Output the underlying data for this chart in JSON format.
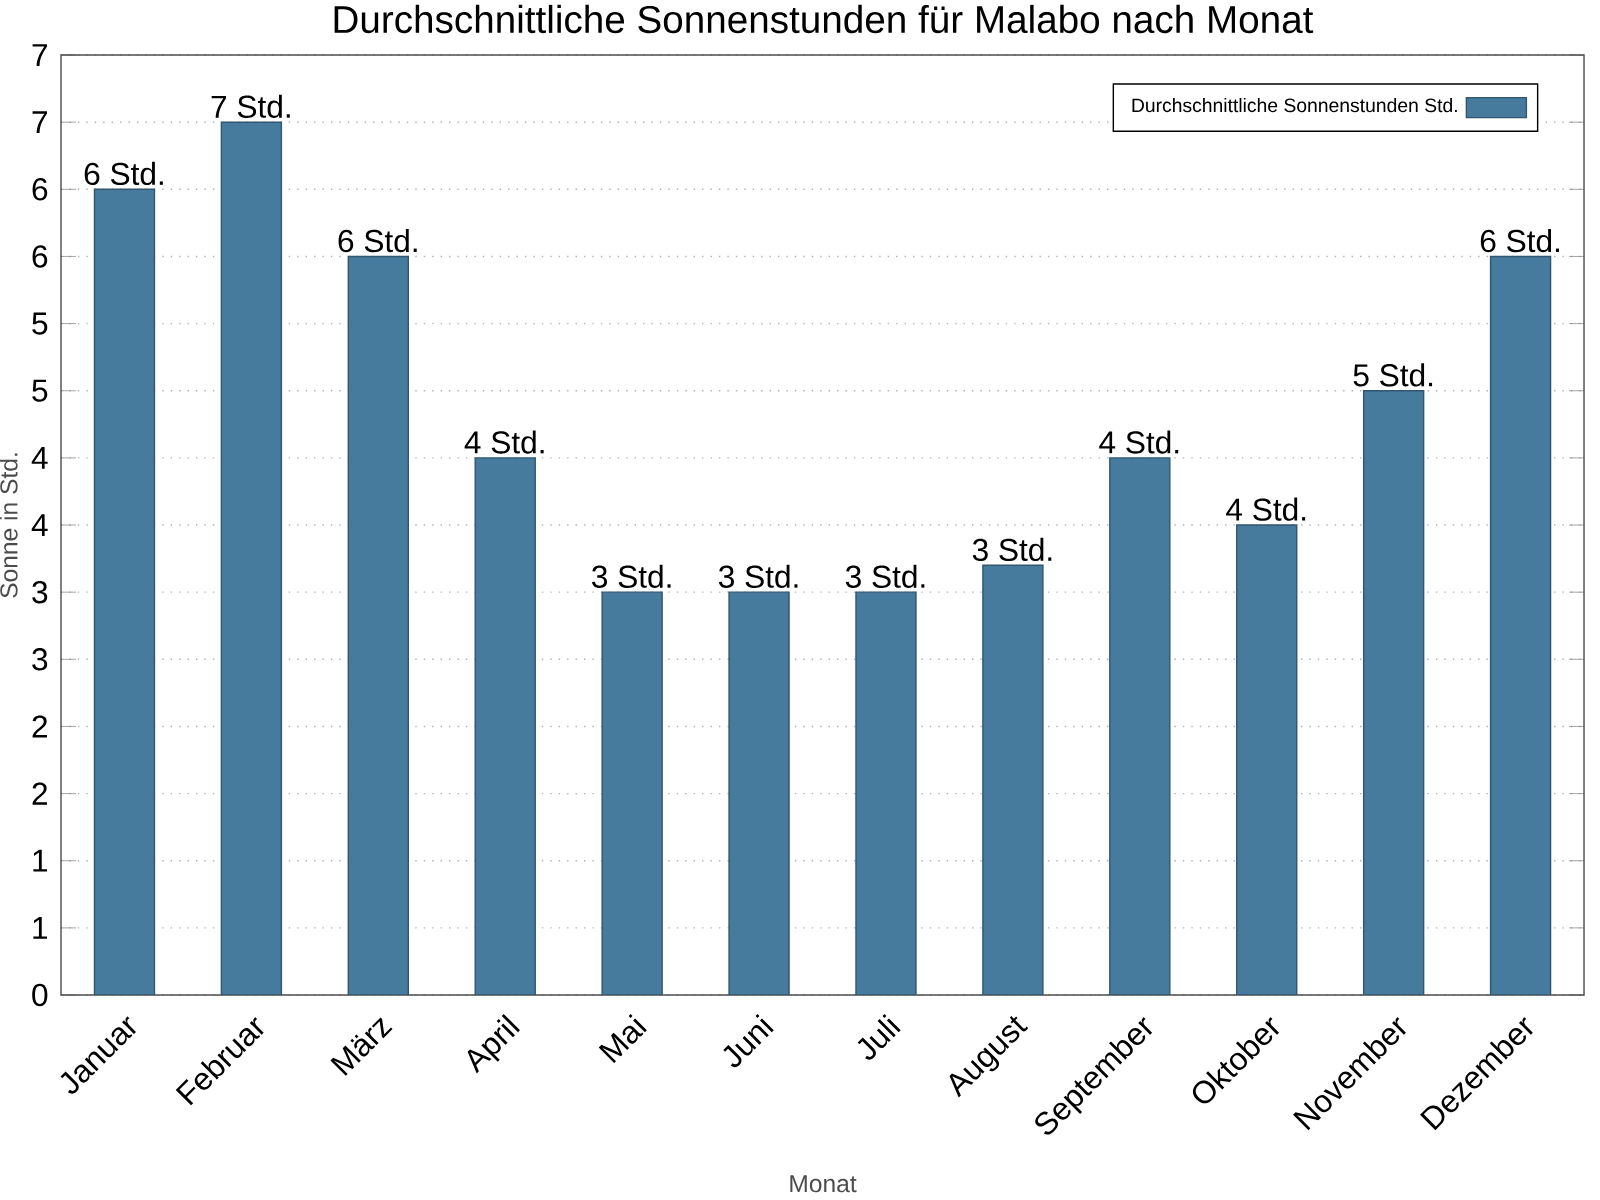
{
  "chart_data": {
    "type": "bar",
    "title": "Durchschnittliche Sonnenstunden für Malabo nach Monat",
    "xlabel": "Monat",
    "ylabel": "Sonne in Std.",
    "categories": [
      "Januar",
      "Februar",
      "März",
      "April",
      "Mai",
      "Juni",
      "Juli",
      "August",
      "September",
      "Oktober",
      "November",
      "Dezember"
    ],
    "series": [
      {
        "name": "Durchschnittliche Sonnenstunden Std.",
        "color": "#467b9e",
        "values": [
          6.0,
          6.5,
          5.5,
          4.0,
          3.0,
          3.0,
          3.0,
          3.2,
          4.0,
          3.5,
          4.5,
          5.5
        ],
        "value_labels": [
          "6 Std.",
          "7 Std.",
          "6 Std.",
          "4 Std.",
          "3 Std.",
          "3 Std.",
          "3 Std.",
          "3 Std.",
          "4 Std.",
          "4 Std.",
          "5 Std.",
          "6 Std."
        ]
      }
    ],
    "ylim": [
      0,
      7
    ],
    "yticks": [
      0,
      {
        "value": 0.5,
        "label": "1"
      },
      {
        "value": 1,
        "label": "1"
      },
      {
        "value": 1.5,
        "label": "2"
      },
      {
        "value": 2,
        "label": "2"
      },
      {
        "value": 2.5,
        "label": "3"
      },
      {
        "value": 3,
        "label": "3"
      },
      {
        "value": 3.5,
        "label": "4"
      },
      {
        "value": 4,
        "label": "4"
      },
      {
        "value": 4.5,
        "label": "5"
      },
      {
        "value": 5,
        "label": "5"
      },
      {
        "value": 5.5,
        "label": "6"
      },
      {
        "value": 6,
        "label": "6"
      },
      {
        "value": 6.5,
        "label": "7"
      },
      {
        "value": 7,
        "label": "7"
      }
    ],
    "grid": "y",
    "legend": "top right"
  }
}
